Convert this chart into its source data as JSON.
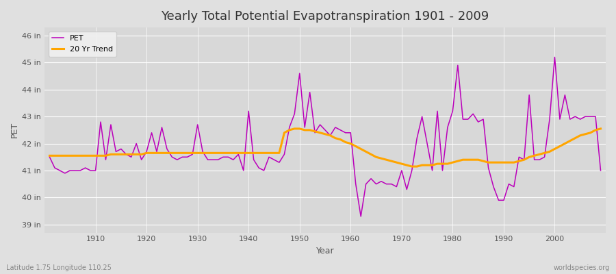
{
  "title": "Yearly Total Potential Evapotranspiration 1901 - 2009",
  "xlabel": "Year",
  "ylabel": "PET",
  "footnote_left": "Latitude 1.75 Longitude 110.25",
  "footnote_right": "worldspecies.org",
  "background_color": "#e0e0e0",
  "plot_bg_color": "#d8d8d8",
  "grid_color": "#ffffff",
  "pet_color": "#bb00bb",
  "trend_color": "#ffa500",
  "ylim": [
    38.7,
    46.3
  ],
  "yticks": [
    39,
    40,
    41,
    42,
    43,
    44,
    45,
    46
  ],
  "xlim": [
    1900,
    2010
  ],
  "years": [
    1901,
    1902,
    1903,
    1904,
    1905,
    1906,
    1907,
    1908,
    1909,
    1910,
    1911,
    1912,
    1913,
    1914,
    1915,
    1916,
    1917,
    1918,
    1919,
    1920,
    1921,
    1922,
    1923,
    1924,
    1925,
    1926,
    1927,
    1928,
    1929,
    1930,
    1931,
    1932,
    1933,
    1934,
    1935,
    1936,
    1937,
    1938,
    1939,
    1940,
    1941,
    1942,
    1943,
    1944,
    1945,
    1946,
    1947,
    1948,
    1949,
    1950,
    1951,
    1952,
    1953,
    1954,
    1955,
    1956,
    1957,
    1958,
    1959,
    1960,
    1961,
    1962,
    1963,
    1964,
    1965,
    1966,
    1967,
    1968,
    1969,
    1970,
    1971,
    1972,
    1973,
    1974,
    1975,
    1976,
    1977,
    1978,
    1979,
    1980,
    1981,
    1982,
    1983,
    1984,
    1985,
    1986,
    1987,
    1988,
    1989,
    1990,
    1991,
    1992,
    1993,
    1994,
    1995,
    1996,
    1997,
    1998,
    1999,
    2000,
    2001,
    2002,
    2003,
    2004,
    2005,
    2006,
    2007,
    2008,
    2009
  ],
  "pet_values": [
    41.5,
    41.1,
    41.0,
    40.9,
    41.0,
    41.0,
    41.0,
    41.1,
    41.0,
    41.0,
    42.8,
    41.4,
    42.7,
    41.7,
    41.8,
    41.6,
    41.5,
    42.0,
    41.4,
    41.7,
    42.4,
    41.7,
    42.6,
    41.8,
    41.5,
    41.4,
    41.5,
    41.5,
    41.6,
    42.7,
    41.7,
    41.4,
    41.4,
    41.4,
    41.5,
    41.5,
    41.4,
    41.6,
    41.0,
    43.2,
    41.4,
    41.1,
    41.0,
    41.5,
    41.4,
    41.3,
    41.6,
    42.6,
    43.1,
    44.6,
    42.6,
    43.9,
    42.4,
    42.7,
    42.5,
    42.3,
    42.6,
    42.5,
    42.4,
    42.4,
    40.5,
    39.3,
    40.5,
    40.7,
    40.5,
    40.6,
    40.5,
    40.5,
    40.4,
    41.0,
    40.3,
    41.0,
    42.2,
    43.0,
    42.0,
    41.0,
    43.2,
    41.0,
    42.6,
    43.2,
    44.9,
    42.9,
    42.9,
    43.1,
    42.8,
    42.9,
    41.1,
    40.4,
    39.9,
    39.9,
    40.5,
    40.4,
    41.5,
    41.4,
    43.8,
    41.4,
    41.4,
    41.5,
    42.9,
    45.2,
    42.9,
    43.8,
    42.9,
    43.0,
    42.9,
    43.0,
    43.0,
    43.0,
    41.0
  ],
  "trend_values": [
    41.55,
    41.55,
    41.55,
    41.55,
    41.55,
    41.55,
    41.55,
    41.55,
    41.55,
    41.55,
    41.55,
    41.55,
    41.6,
    41.6,
    41.6,
    41.6,
    41.6,
    41.6,
    41.6,
    41.65,
    41.65,
    41.65,
    41.65,
    41.65,
    41.65,
    41.65,
    41.65,
    41.65,
    41.65,
    41.65,
    41.65,
    41.65,
    41.65,
    41.65,
    41.65,
    41.65,
    41.65,
    41.65,
    41.65,
    41.65,
    41.65,
    41.65,
    41.65,
    41.65,
    41.65,
    41.65,
    42.4,
    42.5,
    42.55,
    42.55,
    42.5,
    42.5,
    42.45,
    42.4,
    42.35,
    42.3,
    42.2,
    42.15,
    42.05,
    42.0,
    41.9,
    41.8,
    41.7,
    41.6,
    41.5,
    41.45,
    41.4,
    41.35,
    41.3,
    41.25,
    41.2,
    41.15,
    41.15,
    41.2,
    41.2,
    41.2,
    41.25,
    41.25,
    41.25,
    41.3,
    41.35,
    41.4,
    41.4,
    41.4,
    41.4,
    41.35,
    41.3,
    41.3,
    41.3,
    41.3,
    41.3,
    41.3,
    41.35,
    41.4,
    41.5,
    41.55,
    41.6,
    41.65,
    41.7,
    41.8,
    41.9,
    42.0,
    42.1,
    42.2,
    42.3,
    42.35,
    42.4,
    42.5,
    42.55
  ]
}
